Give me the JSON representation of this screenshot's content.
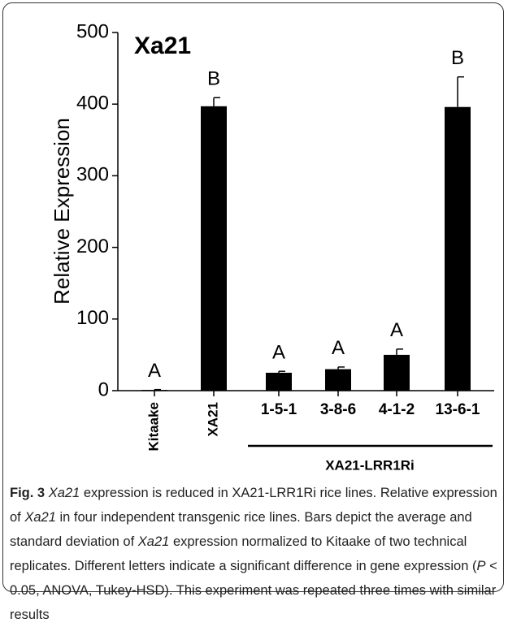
{
  "chart_data": {
    "type": "bar",
    "title": "Xa21",
    "ylabel": "Relative Expression",
    "categories": [
      "Kitaake",
      "XA21",
      "1-5-1",
      "3-8-6",
      "4-1-2",
      "13-6-1"
    ],
    "values": [
      1,
      397,
      25,
      30,
      50,
      396
    ],
    "errors": [
      0.5,
      12,
      2,
      3,
      8,
      42
    ],
    "letters": [
      "A",
      "B",
      "A",
      "A",
      "A",
      "B"
    ],
    "group_label": "XA21-LRR1Ri",
    "color": "#000000",
    "ylim": [
      0,
      500
    ],
    "yticks": [
      0,
      100,
      200,
      300,
      400,
      500
    ]
  },
  "caption": [
    "Fig. 3",
    "Xa21",
    "expression is reduced in XA21-LRR1Ri rice lines. Relative expression of",
    "Xa21",
    "in four independent transgenic rice lines. Bars depict the average and standard deviation of",
    "Xa21",
    "expression normalized to Kitaake of two technical replicates. Different letters indicate a significant difference in gene expression (",
    "P",
    "< 0.05, ANOVA, Tukey-HSD). This experiment was repeated three times with similar results"
  ]
}
